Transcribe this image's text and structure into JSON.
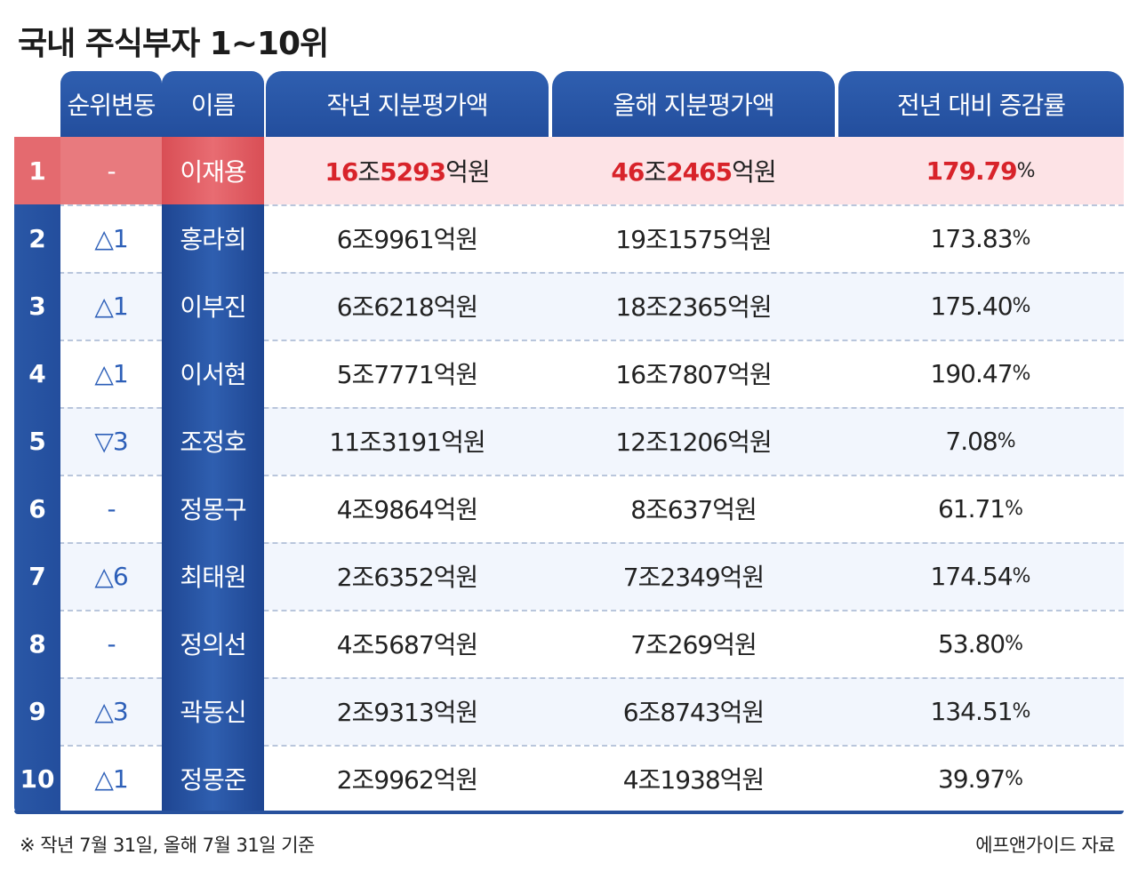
{
  "title": "국내 주식부자 1~10위",
  "chart_data": {
    "type": "table",
    "columns": [
      "",
      "순위변동",
      "이름",
      "작년 지분평가액",
      "올해 지분평가액",
      "전년 대비 증감률"
    ],
    "rows": [
      {
        "rank": "1",
        "change": "-",
        "name": "이재용",
        "last": [
          "16",
          "조",
          "5293",
          "억원"
        ],
        "this": [
          "46",
          "조",
          "2465",
          "억원"
        ],
        "rate": "179.79",
        "highlight": true
      },
      {
        "rank": "2",
        "change": "△1",
        "name": "홍라희",
        "last": [
          "6",
          "조",
          "9961",
          "억원"
        ],
        "this": [
          "19",
          "조",
          "1575",
          "억원"
        ],
        "rate": "173.83"
      },
      {
        "rank": "3",
        "change": "△1",
        "name": "이부진",
        "last": [
          "6",
          "조",
          "6218",
          "억원"
        ],
        "this": [
          "18",
          "조",
          "2365",
          "억원"
        ],
        "rate": "175.40"
      },
      {
        "rank": "4",
        "change": "△1",
        "name": "이서현",
        "last": [
          "5",
          "조",
          "7771",
          "억원"
        ],
        "this": [
          "16",
          "조",
          "7807",
          "억원"
        ],
        "rate": "190.47"
      },
      {
        "rank": "5",
        "change": "▽3",
        "name": "조정호",
        "last": [
          "11",
          "조",
          "3191",
          "억원"
        ],
        "this": [
          "12",
          "조",
          "1206",
          "억원"
        ],
        "rate": "7.08"
      },
      {
        "rank": "6",
        "change": "-",
        "name": "정몽구",
        "last": [
          "4",
          "조",
          "9864",
          "억원"
        ],
        "this": [
          "8",
          "조",
          "637",
          "억원"
        ],
        "rate": "61.71"
      },
      {
        "rank": "7",
        "change": "△6",
        "name": "최태원",
        "last": [
          "2",
          "조",
          "6352",
          "억원"
        ],
        "this": [
          "7",
          "조",
          "2349",
          "억원"
        ],
        "rate": "174.54"
      },
      {
        "rank": "8",
        "change": "-",
        "name": "정의선",
        "last": [
          "4",
          "조",
          "5687",
          "억원"
        ],
        "this": [
          "7",
          "조",
          "269",
          "억원"
        ],
        "rate": "53.80"
      },
      {
        "rank": "9",
        "change": "△3",
        "name": "곽동신",
        "last": [
          "2",
          "조",
          "9313",
          "억원"
        ],
        "this": [
          "6",
          "조",
          "8743",
          "억원"
        ],
        "rate": "134.51"
      },
      {
        "rank": "10",
        "change": "△1",
        "name": "정몽준",
        "last": [
          "2",
          "조",
          "9962",
          "억원"
        ],
        "this": [
          "4",
          "조",
          "1938",
          "억원"
        ],
        "rate": "39.97"
      }
    ],
    "rate_unit": "%",
    "highlight_color": "#d8232a",
    "header_color": "#2f5fb0",
    "top_row_color": "#e46a6f"
  },
  "footnote": "※ 작년 7월 31일, 올해 7월 31일 기준",
  "source": "에프앤가이드 자료"
}
